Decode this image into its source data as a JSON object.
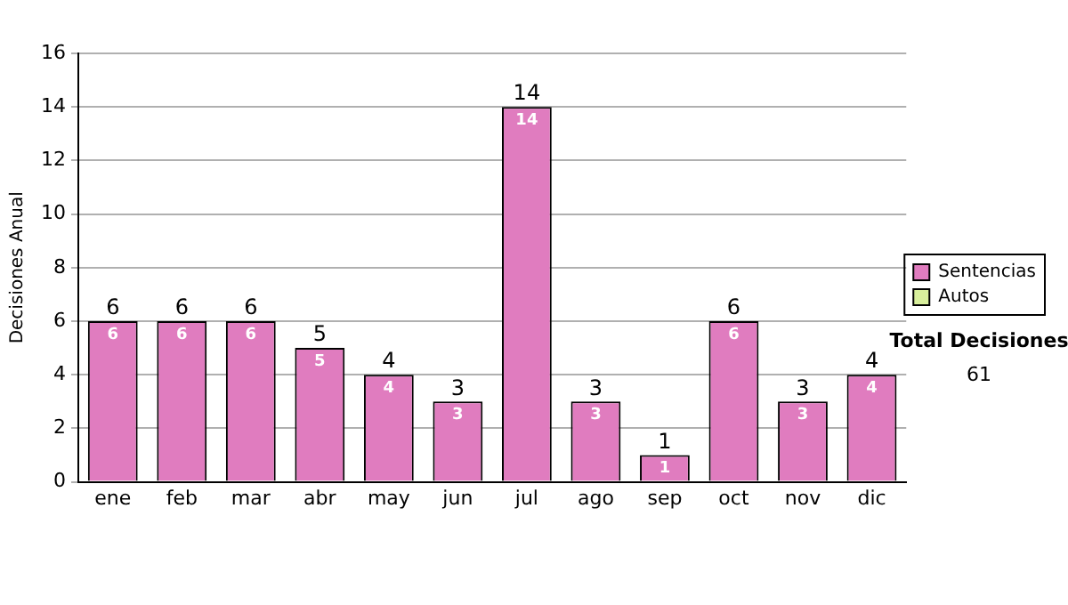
{
  "chart_data": {
    "type": "bar",
    "stacked": true,
    "ylabel": "Decisiones Anual",
    "categories": [
      "ene",
      "feb",
      "mar",
      "abr",
      "may",
      "jun",
      "jul",
      "ago",
      "sep",
      "oct",
      "nov",
      "dic"
    ],
    "series": [
      {
        "name": "Sentencias",
        "color": "#e07cbf",
        "values": [
          6,
          6,
          6,
          5,
          4,
          3,
          14,
          3,
          1,
          6,
          3,
          4
        ],
        "value_labels": [
          "6",
          "6",
          "6",
          "5",
          "4",
          "3",
          "14",
          "3",
          "1",
          "6",
          "3",
          "4"
        ]
      },
      {
        "name": "Autos",
        "color": "#d8ef9c",
        "values": [
          0,
          0,
          0,
          0,
          0,
          0,
          0,
          0,
          0,
          0,
          0,
          0
        ]
      }
    ],
    "totals": [
      "6",
      "6",
      "6",
      "5",
      "4",
      "3",
      "14",
      "3",
      "1",
      "6",
      "3",
      "4"
    ],
    "ylim": [
      0,
      16
    ],
    "yticks": [
      0,
      2,
      4,
      6,
      8,
      10,
      12,
      14,
      16
    ],
    "grid": "y",
    "legend": "right",
    "annotations": [
      "Total Decisiones",
      "61"
    ]
  }
}
